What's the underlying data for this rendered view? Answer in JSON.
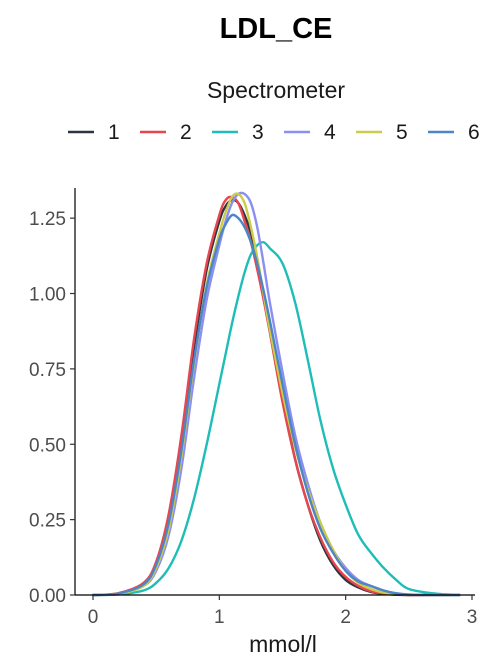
{
  "chart_data": {
    "type": "line",
    "title": "LDL_CE",
    "xlabel": "mmol/l",
    "ylabel": "",
    "xlim": [
      0,
      3
    ],
    "ylim": [
      0,
      1.35
    ],
    "x_ticks": [
      0,
      1,
      2,
      3
    ],
    "x_tick_labels": [
      "0",
      "1",
      "2",
      "3"
    ],
    "y_ticks": [
      0,
      0.25,
      0.5,
      0.75,
      1.0,
      1.25
    ],
    "y_tick_labels": [
      "0.00",
      "0.25",
      "0.50",
      "0.75",
      "1.00",
      "1.25"
    ],
    "grid": false,
    "legend": {
      "title": "Spectrometer",
      "position": "top"
    },
    "x": [
      0.0,
      0.2,
      0.4,
      0.5,
      0.6,
      0.7,
      0.8,
      0.9,
      1.0,
      1.05,
      1.1,
      1.15,
      1.2,
      1.25,
      1.3,
      1.35,
      1.4,
      1.5,
      1.6,
      1.7,
      1.8,
      1.9,
      2.0,
      2.1,
      2.2,
      2.3,
      2.4,
      2.5,
      2.7,
      2.9
    ],
    "series": [
      {
        "name": "1",
        "color": "#2e3441",
        "values": [
          0.0,
          0.005,
          0.035,
          0.1,
          0.25,
          0.5,
          0.82,
          1.08,
          1.24,
          1.29,
          1.31,
          1.3,
          1.26,
          1.2,
          1.11,
          1.0,
          0.88,
          0.65,
          0.45,
          0.3,
          0.18,
          0.1,
          0.05,
          0.025,
          0.01,
          0.004,
          0.001,
          0.0,
          0.0,
          0.0
        ]
      },
      {
        "name": "2",
        "color": "#e8464e",
        "values": [
          0.0,
          0.006,
          0.04,
          0.11,
          0.27,
          0.53,
          0.85,
          1.1,
          1.26,
          1.31,
          1.32,
          1.3,
          1.24,
          1.17,
          1.08,
          0.98,
          0.87,
          0.64,
          0.45,
          0.3,
          0.19,
          0.11,
          0.06,
          0.03,
          0.012,
          0.005,
          0.002,
          0.0,
          0.0,
          0.0
        ]
      },
      {
        "name": "3",
        "color": "#1ebdb8",
        "values": [
          0.0,
          0.002,
          0.015,
          0.04,
          0.09,
          0.18,
          0.32,
          0.5,
          0.7,
          0.8,
          0.9,
          0.99,
          1.07,
          1.13,
          1.16,
          1.17,
          1.15,
          1.1,
          0.97,
          0.78,
          0.58,
          0.42,
          0.3,
          0.2,
          0.14,
          0.09,
          0.05,
          0.02,
          0.005,
          0.0
        ]
      },
      {
        "name": "4",
        "color": "#8b8ef2",
        "values": [
          0.0,
          0.004,
          0.03,
          0.08,
          0.2,
          0.42,
          0.72,
          0.98,
          1.16,
          1.24,
          1.3,
          1.33,
          1.33,
          1.3,
          1.22,
          1.1,
          0.97,
          0.74,
          0.53,
          0.37,
          0.24,
          0.15,
          0.09,
          0.05,
          0.03,
          0.015,
          0.006,
          0.002,
          0.0,
          0.0
        ]
      },
      {
        "name": "5",
        "color": "#cbcc4a",
        "values": [
          0.0,
          0.004,
          0.03,
          0.09,
          0.22,
          0.46,
          0.77,
          1.03,
          1.2,
          1.27,
          1.32,
          1.33,
          1.3,
          1.22,
          1.12,
          1.0,
          0.88,
          0.67,
          0.49,
          0.35,
          0.24,
          0.15,
          0.08,
          0.04,
          0.02,
          0.008,
          0.003,
          0.001,
          0.0,
          0.0
        ]
      },
      {
        "name": "6",
        "color": "#4d86c6",
        "values": [
          0.0,
          0.005,
          0.035,
          0.1,
          0.24,
          0.48,
          0.78,
          1.02,
          1.18,
          1.23,
          1.26,
          1.25,
          1.22,
          1.17,
          1.1,
          1.01,
          0.91,
          0.7,
          0.5,
          0.34,
          0.22,
          0.14,
          0.08,
          0.045,
          0.03,
          0.015,
          0.005,
          0.001,
          0.0,
          0.0
        ]
      }
    ]
  }
}
